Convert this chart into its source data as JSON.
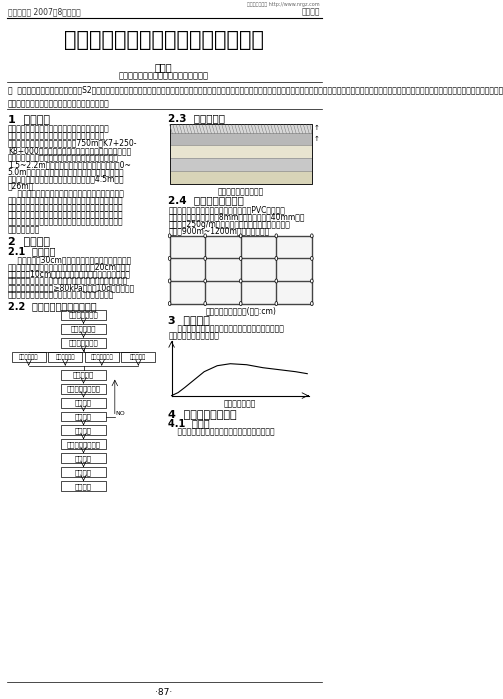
{
  "page_width": 5.03,
  "page_height": 6.99,
  "dpi": 100,
  "bg_color": "#ffffff",
  "header_left": "建材与装饰 2007年8月中旬刊",
  "header_right": "施工技术",
  "watermark": "更多资料请访问 http://www.nrgz.com",
  "main_title": "真空联合堆载预压软基处理施工技术",
  "author": "王章培",
  "affiliation": "（中国中铁一局集团第五工程有限公司）",
  "abstract_label": "摘  要：",
  "abstract_text": "我组施工浙江台缙高速公路S2标工程，其中软基处理是我标段的难点工程，而且软基处理方法多种多样，其中真空联合堆载预压处理软基在我公司尚属首次施工，自批工程造价低、工期紧、施工条件差。因此，就真空联合堆载预压软基处理施工技术作以下总结。",
  "keywords_label": "关键词：",
  "keywords_text": "真空联合堆载预压；软基处理；施工技术",
  "section1_title": "1  工程概况",
  "section23_title": "2.3  施工次序图",
  "section23_note": "真空预压滤料层分布图",
  "section24_title": "2.4  真空预压管路布置",
  "section24_text_lines": [
    "排水管道主管和支管及其管缘均采用硬质PVC管，在管",
    "壁按正三角形开孔，孔径8mm，上下孔间距为40mm，打",
    "孔后外包250g/m以上无纺土工布包裹。真空射流泵数",
    "量按约900m~1200m处理面积控制。"
  ],
  "section24_fig_note": "真空预压管路布置图(单位:cm)",
  "section2_title": "2  施工工艺",
  "section21_title": "2.1  施工次序",
  "section22_title": "2.2  真空预压施工工艺流程图",
  "section3_title": "3  加荷曲线",
  "section3_text_lines": [
    "    抽真空时间需要四个月，根据现场实际情况尽量延长",
    "真空堆载联合预压时间。"
  ],
  "section3_fig_note": "加载曲线示意图",
  "section4_title": "4  施工时的现场测试",
  "section41_title": "4.1  真空度",
  "section41_text": "    要求对真空表进行校核，读取数据并做好记录。",
  "footer_page": "·87·",
  "section1_lines": [
    "台缙高速公路是浙江省交通建设二横二横十连一统",
    "二通道中的一连，是浙江省十五规划中实施的主",
    "要基础设施之一。我标段软基处理750m（K7+250-",
    "K8+000），不良软土层约主要分布情况如下：处址靠",
    "近城洪积的冲海积平原，上部分布冲海积亚粘土，层厚",
    "1.5~2.2m；软塑状；上部分布海积淤泥，层厚0~",
    "5.0m；下部分布冲洪积圆砾、卵石及坡洪积含粘性亚",
    "粘土，厚度较大。本段路基设计平均高度为4.5m，顶",
    "宽26m。"
  ],
  "section1_lines2": [
    "    真空预压法加固地基是在需要加固的软土地基表面先",
    "铺设砂垫层，然后埋设真空排水通道（塑料插水板），再",
    "用不透气的封闭膜与大气隔绝，薄膜四周埋入土中，通过",
    "在砂垫层内埋设吸水管道，用真空装置进行抽气，形成真",
    "空，土体中的孔隙水在负作用下不断由排水通道排出，从",
    "而使土体固结。"
  ],
  "section21_lines": [
    "    清表后铺设30cm砂砾垫层，打设塑料排水板，埋设",
    "观测设备，铺设排水滤管，控密封沟，铺设20cm砂砾垫",
    "层，内铺设10cm濒砂；其上铺设一层无纺土工布，内设",
    "二层真空膜，封密封沟，安装射流泵，连接管路，抽真空，",
    "观测真空预压（真空度≥80kPa）稳定10d左右，铺设",
    "一层土工布，铺设细砂和粘土，然后进行正常堆载。"
  ],
  "fc_single_boxes": [
    "施测、平整场地",
    "铺碎砂垫垫层",
    "打工塑料排水板"
  ],
  "fc_row4": [
    "埋设观测器具",
    "铺设水下滤管",
    "安装调试射流泵",
    "控密封封沟"
  ],
  "fc_after_row4": [
    "铺密封滤管",
    "铺网状连接管处理",
    "铺气密膜"
  ],
  "fc_decision": "积气分析",
  "fc_no_label": "NO",
  "fc_after_decision": [
    "正式抽气",
    "真空堆载联合预压",
    "检验检查",
    "质量检查",
    "竣工验收"
  ]
}
